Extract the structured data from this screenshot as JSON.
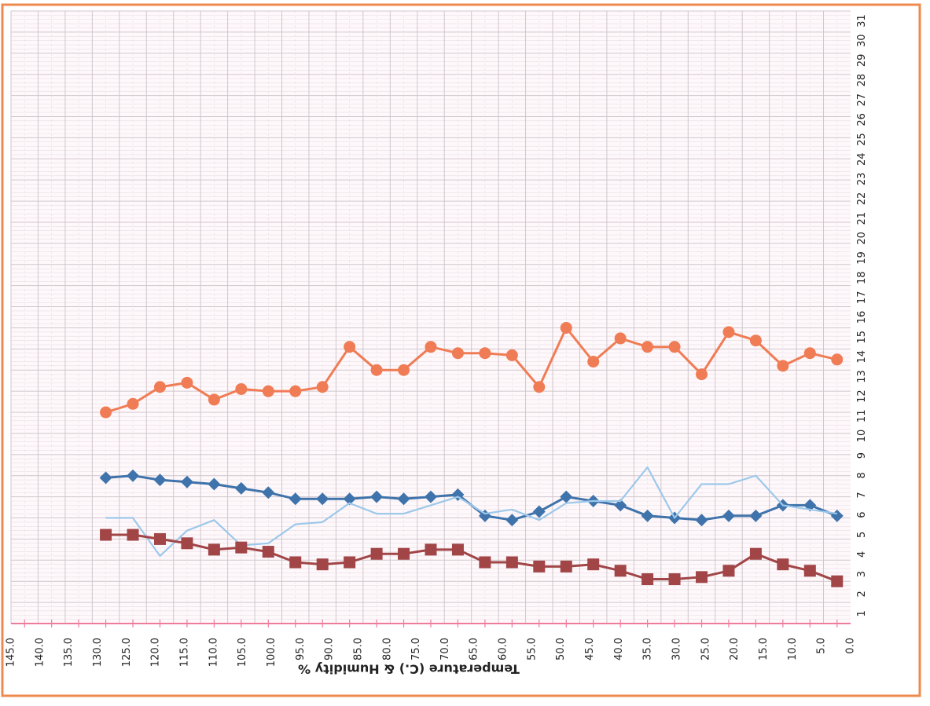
{
  "chart_data": {
    "type": "line",
    "orientation": "rotated-180",
    "title": "",
    "ylabel": "Temperature (C.) & Humidity %",
    "xlabel": "",
    "x": [
      1,
      2,
      3,
      4,
      5,
      6,
      7,
      8,
      9,
      10,
      11,
      12,
      13,
      14,
      15,
      16,
      17,
      18,
      19,
      20,
      21,
      22,
      23,
      24,
      25,
      26,
      27,
      28
    ],
    "x_ticks": [
      "1",
      "2",
      "3",
      "4",
      "5",
      "6",
      "7",
      "8",
      "9",
      "10",
      "11",
      "12",
      "13",
      "14",
      "15",
      "16",
      "17",
      "18",
      "19",
      "20",
      "21",
      "22",
      "23",
      "24",
      "25",
      "26",
      "27",
      "28",
      "29",
      "30",
      "31"
    ],
    "xlim": [
      0.5,
      31.5
    ],
    "ylim": [
      0,
      145
    ],
    "y_ticks": [
      "0.0",
      "5.0",
      "10.0",
      "15.0",
      "20.0",
      "25.0",
      "30.0",
      "35.0",
      "40.0",
      "45.0",
      "50.0",
      "55.0",
      "60.0",
      "65.0",
      "70.0",
      "75.0",
      "80.0",
      "85.0",
      "90.0",
      "95.0",
      "100.0",
      "105.0",
      "110.0",
      "115.0",
      "120.0",
      "125.0",
      "130.0",
      "135.0",
      "140.0",
      "145.0"
    ],
    "grid": true,
    "series": [
      {
        "color": "#f07c55",
        "marker": "circle",
        "values": [
          62.5,
          64,
          61,
          67,
          69,
          59,
          65.5,
          65.5,
          67.5,
          62,
          70,
          56,
          63.5,
          64,
          64,
          65.5,
          60,
          60,
          65.5,
          56,
          55,
          55,
          55.5,
          53,
          57,
          56,
          52,
          50
        ]
      },
      {
        "color": "#3f73ab",
        "marker": "diamond",
        "values": [
          25.5,
          28,
          28,
          25.5,
          25.5,
          24.5,
          25,
          25.5,
          28,
          29,
          30,
          26.5,
          24.5,
          25.5,
          30.5,
          30,
          29.5,
          30,
          29.5,
          29.5,
          29.5,
          31,
          32,
          33,
          33.5,
          34,
          35,
          34.5
        ]
      },
      {
        "color": "#9cc8ea",
        "marker": "none",
        "values": [
          26,
          27,
          28,
          35,
          33,
          33,
          25,
          37,
          29,
          29,
          28.5,
          24.5,
          27,
          26,
          30,
          28,
          26,
          26,
          28.5,
          24,
          23.5,
          19,
          18.5,
          24.5,
          22,
          16,
          25,
          25
        ]
      },
      {
        "color": "#a14547",
        "marker": "square",
        "values": [
          10,
          12.5,
          14,
          16.5,
          12.5,
          11,
          10.5,
          10.5,
          12.5,
          14,
          13.5,
          13.5,
          14.5,
          14.5,
          17.5,
          17.5,
          16.5,
          16.5,
          14.5,
          14,
          14.5,
          17,
          18,
          17.5,
          19,
          20,
          21,
          21
        ]
      }
    ]
  },
  "colors": {
    "frame_border": "#ef8a4e",
    "plot_background": "#fff8fb",
    "grid_major": "#cfc6cc",
    "grid_minor": "#e6dde3",
    "axis_line": "#f07a9a"
  }
}
